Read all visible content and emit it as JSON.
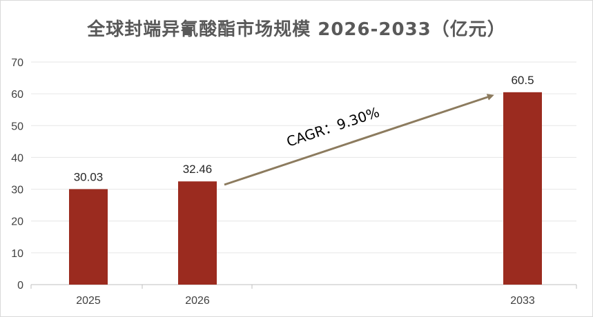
{
  "chart_data": {
    "type": "bar",
    "title": "全球封端异氰酸酯市场规模 2026-2033（亿元）",
    "categories": [
      "2025",
      "2026",
      "2033"
    ],
    "values": [
      30.03,
      32.46,
      60.5
    ],
    "value_labels": [
      "30.03",
      "32.46",
      "60.5"
    ],
    "ylim": [
      0,
      70
    ],
    "yticks": [
      0,
      10,
      20,
      30,
      40,
      50,
      60,
      70
    ],
    "xlabel": "",
    "ylabel": "",
    "grid": true,
    "annotation": "CAGR：9.30%",
    "colors": {
      "bar": "#9b2b1f",
      "arrow": "#8c7b5e",
      "grid": "#e6e6e6"
    }
  }
}
